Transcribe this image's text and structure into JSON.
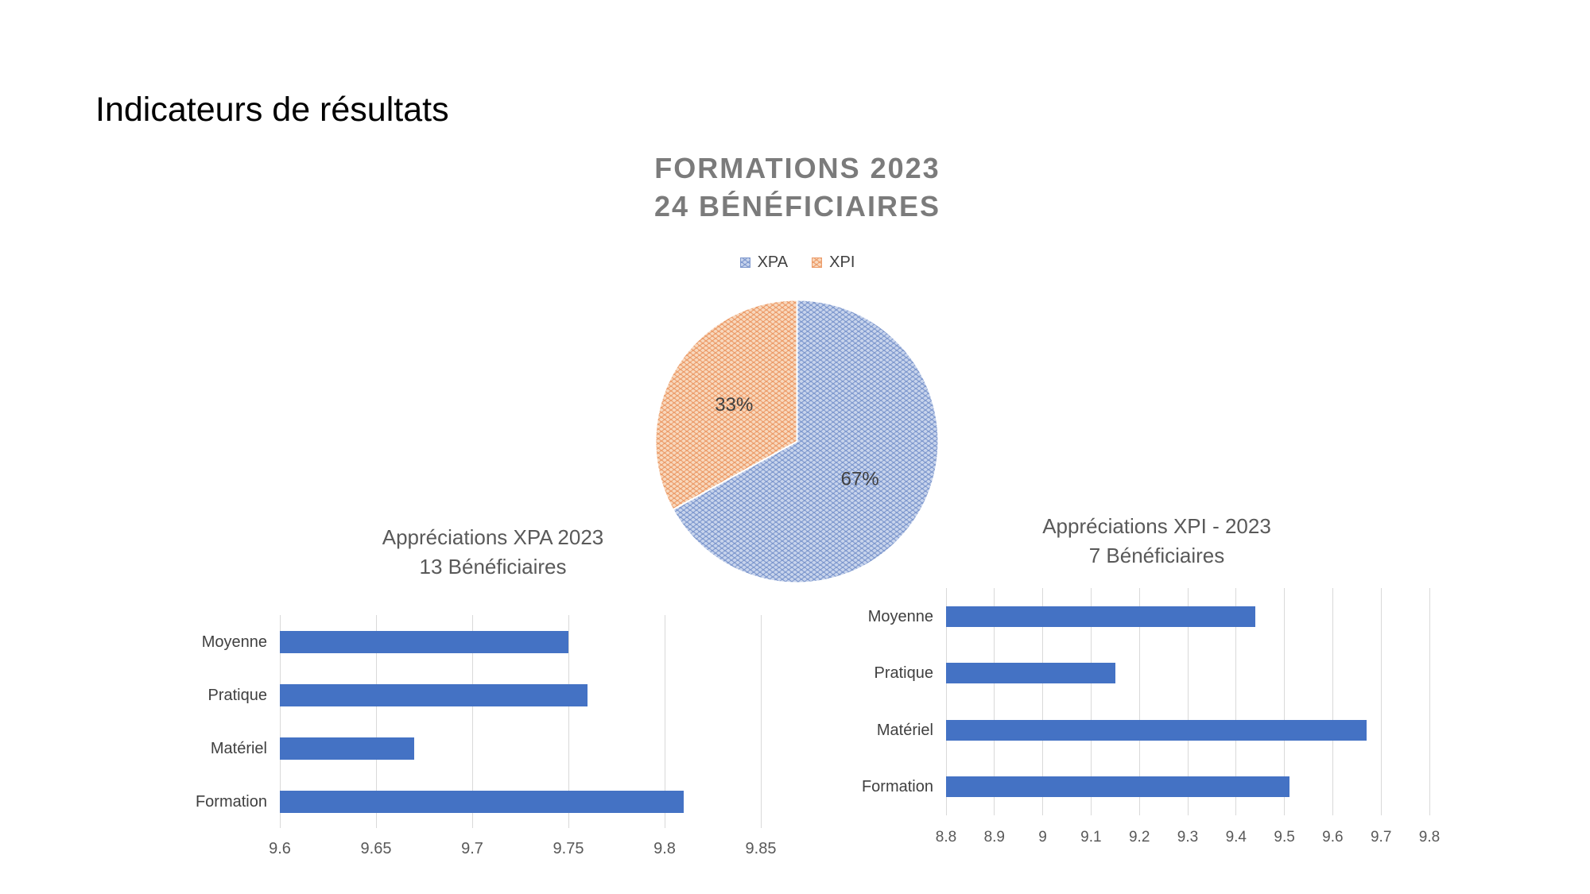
{
  "slide": {
    "title": "Indicateurs de résultats"
  },
  "colors": {
    "bar_blue": "#4472C4",
    "pie_blue_bg": "#C8D4EC",
    "pie_blue_fg": "#7F99CE",
    "pie_orange_bg": "#F8D8BD",
    "pie_orange_fg": "#EC9C6A",
    "grid": "#D9D9D9",
    "axis_text": "#595959",
    "category_text": "#404040",
    "chart_title_text": "#595959",
    "pie_title_text": "#7B7B7B",
    "slice_label_text": "#404040",
    "slice_border": "#FFFFFF"
  },
  "chart_data": [
    {
      "id": "formations-pie",
      "type": "pie",
      "title": "FORMATIONS 2023",
      "subtitle": "24 BÉNÉFICIAIRES",
      "legend": [
        "XPA",
        "XPI"
      ],
      "legend_position": "top",
      "categories": [
        "XPA",
        "XPI"
      ],
      "values": [
        67,
        33
      ],
      "slice_labels": [
        "67%",
        "33%"
      ],
      "start_angle_deg": -90,
      "direction": "clockwise",
      "pattern_fill": true
    },
    {
      "id": "appreciations-xpa",
      "type": "bar",
      "orientation": "horizontal",
      "title": "Appréciations XPA 2023",
      "subtitle": "13 Bénéficiaires",
      "categories": [
        "Moyenne",
        "Pratique",
        "Matériel",
        "Formation"
      ],
      "values": [
        9.75,
        9.76,
        9.67,
        9.81
      ],
      "xlim": [
        9.6,
        9.85
      ],
      "tick_step": 0.05,
      "ticks": [
        "9.6",
        "9.65",
        "9.7",
        "9.75",
        "9.8",
        "9.85"
      ],
      "grid": true,
      "legend_position": "none"
    },
    {
      "id": "appreciations-xpi",
      "type": "bar",
      "orientation": "horizontal",
      "title": "Appréciations XPI - 2023",
      "subtitle": "7 Bénéficiaires",
      "categories": [
        "Moyenne",
        "Pratique",
        "Matériel",
        "Formation"
      ],
      "values": [
        9.44,
        9.15,
        9.67,
        9.51
      ],
      "xlim": [
        8.8,
        9.8
      ],
      "tick_step": 0.1,
      "ticks": [
        "8.8",
        "8.9",
        "9",
        "9.1",
        "9.2",
        "9.3",
        "9.4",
        "9.5",
        "9.6",
        "9.7",
        "9.8"
      ],
      "grid": true,
      "legend_position": "none"
    }
  ]
}
